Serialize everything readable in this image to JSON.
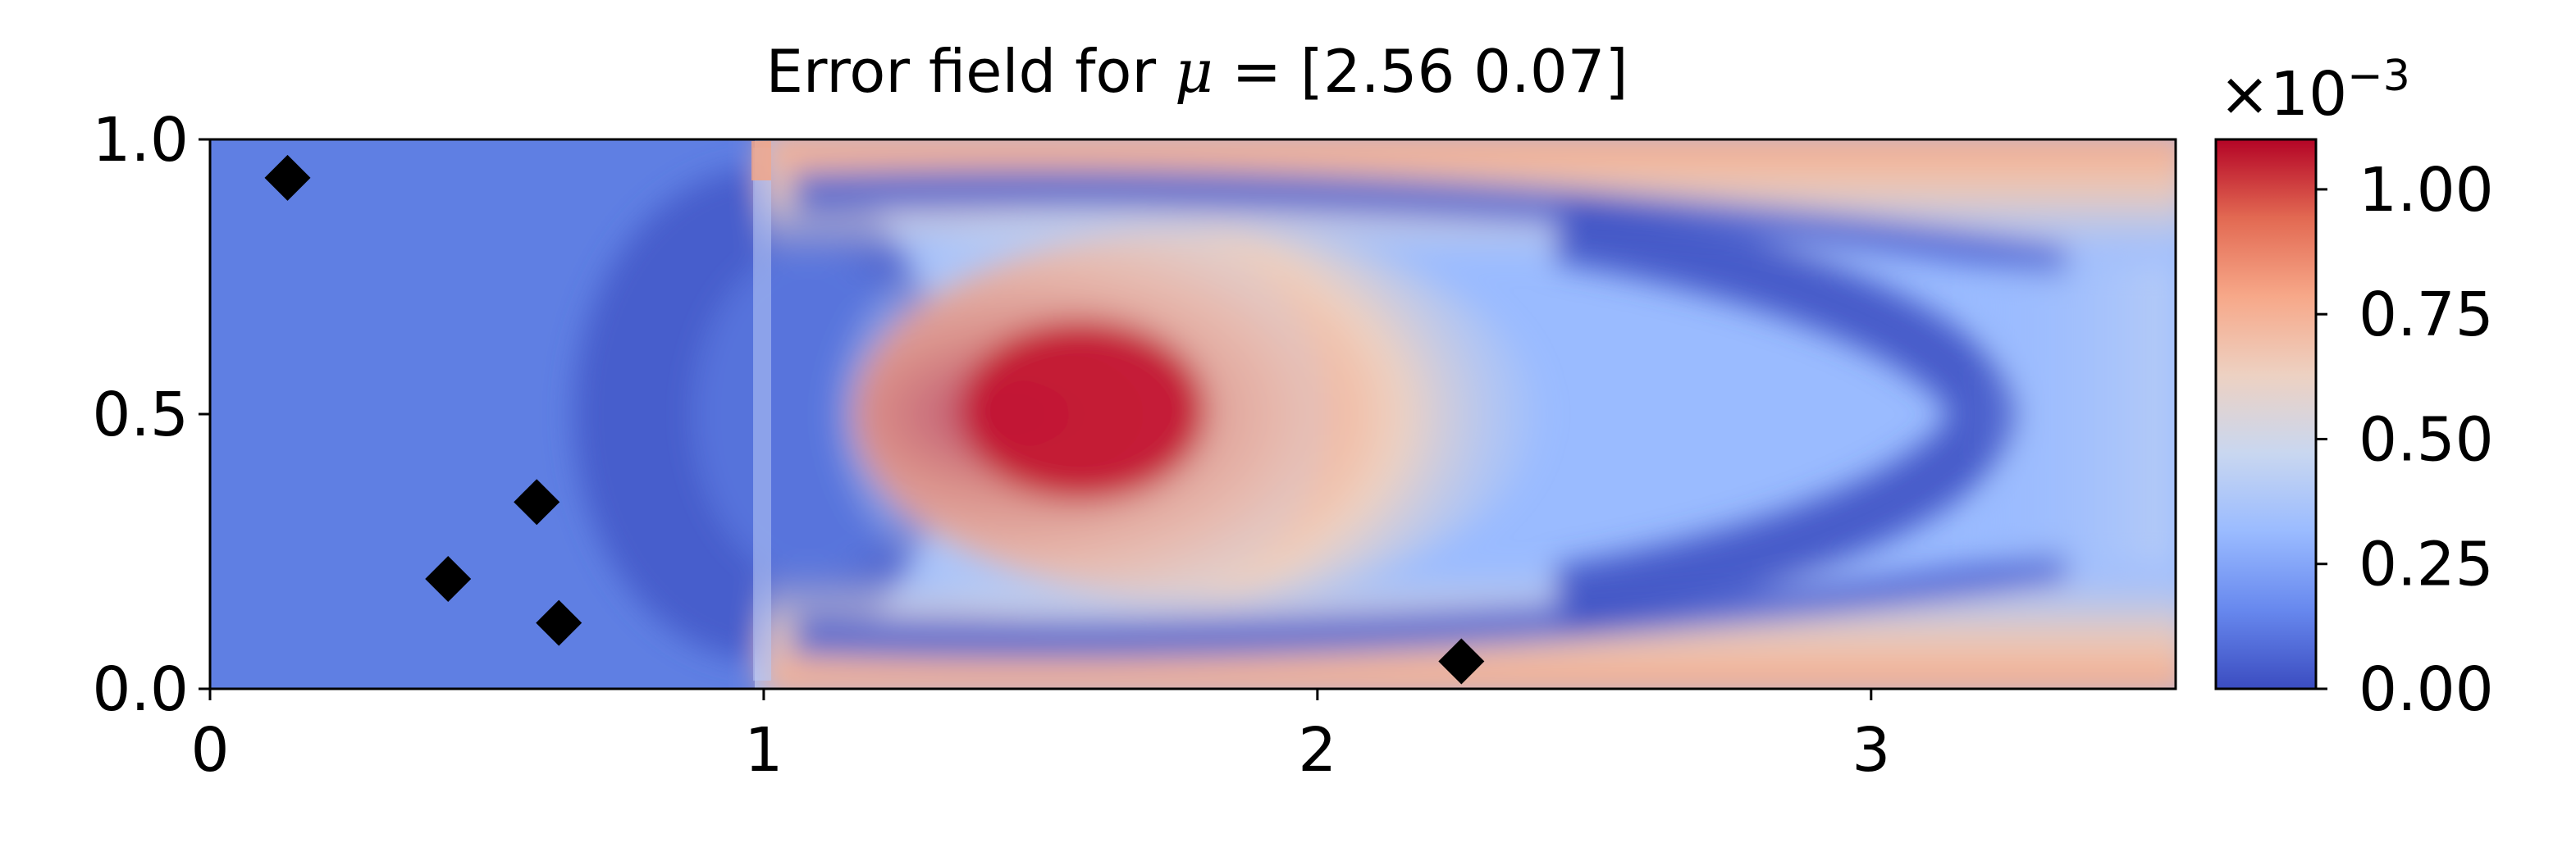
{
  "chart_data": {
    "type": "heatmap",
    "title": {
      "prefix": "Error field for ",
      "symbol": "μ",
      "suffix": " = [2.56 0.07]"
    },
    "xlabel": "",
    "ylabel": "",
    "xlim": [
      0,
      3.55
    ],
    "ylim": [
      0,
      1
    ],
    "x_ticks": [
      0,
      1,
      2,
      3
    ],
    "x_tick_labels": [
      "0",
      "1",
      "2",
      "3"
    ],
    "y_ticks": [
      0.0,
      0.5,
      1.0
    ],
    "y_tick_labels": [
      "0.0",
      "0.5",
      "1.0"
    ],
    "colormap": "coolwarm",
    "colormap_stops": [
      "#3b4cc0",
      "#6788ee",
      "#9abbff",
      "#c9d7f0",
      "#edd1c2",
      "#f7a889",
      "#e26952",
      "#b40426"
    ],
    "colorbar": {
      "range": [
        0,
        1.1
      ],
      "ticks": [
        0.0,
        0.25,
        0.5,
        0.75,
        1.0
      ],
      "tick_labels": [
        "0.00",
        "0.25",
        "0.50",
        "0.75",
        "1.00"
      ],
      "multiplier": {
        "base": "×10",
        "exponent": "−3"
      }
    },
    "markers": {
      "shape": "diamond",
      "color": "#000000",
      "points": [
        {
          "x": 0.14,
          "y": 0.93
        },
        {
          "x": 0.59,
          "y": 0.34
        },
        {
          "x": 0.43,
          "y": 0.2
        },
        {
          "x": 0.63,
          "y": 0.12
        },
        {
          "x": 2.26,
          "y": 0.05
        }
      ]
    }
  }
}
